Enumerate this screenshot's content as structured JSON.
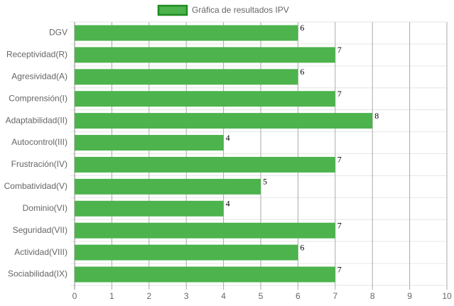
{
  "chart_data": {
    "type": "bar",
    "orientation": "horizontal",
    "categories": [
      "DGV",
      "Receptividad(R)",
      "Agresividad(A)",
      "Comprensión(I)",
      "Adaptabilidad(II)",
      "Autocontrol(III)",
      "Frustración(IV)",
      "Combatividad(V)",
      "Dominio(VI)",
      "Seguridad(VII)",
      "Actividad(VIII)",
      "Sociabilidad(IX)"
    ],
    "series": [
      {
        "name": "Gráfica de resultados IPV",
        "color": "#4db34d",
        "border_color": "#1e8c1e",
        "values": [
          6,
          7,
          6,
          7,
          8,
          4,
          7,
          5,
          4,
          7,
          6,
          7
        ]
      }
    ],
    "xlim": [
      0,
      10
    ],
    "xticks": [
      0,
      1,
      2,
      3,
      4,
      5,
      6,
      7,
      8,
      9,
      10
    ],
    "grid": true,
    "legend": "top"
  }
}
